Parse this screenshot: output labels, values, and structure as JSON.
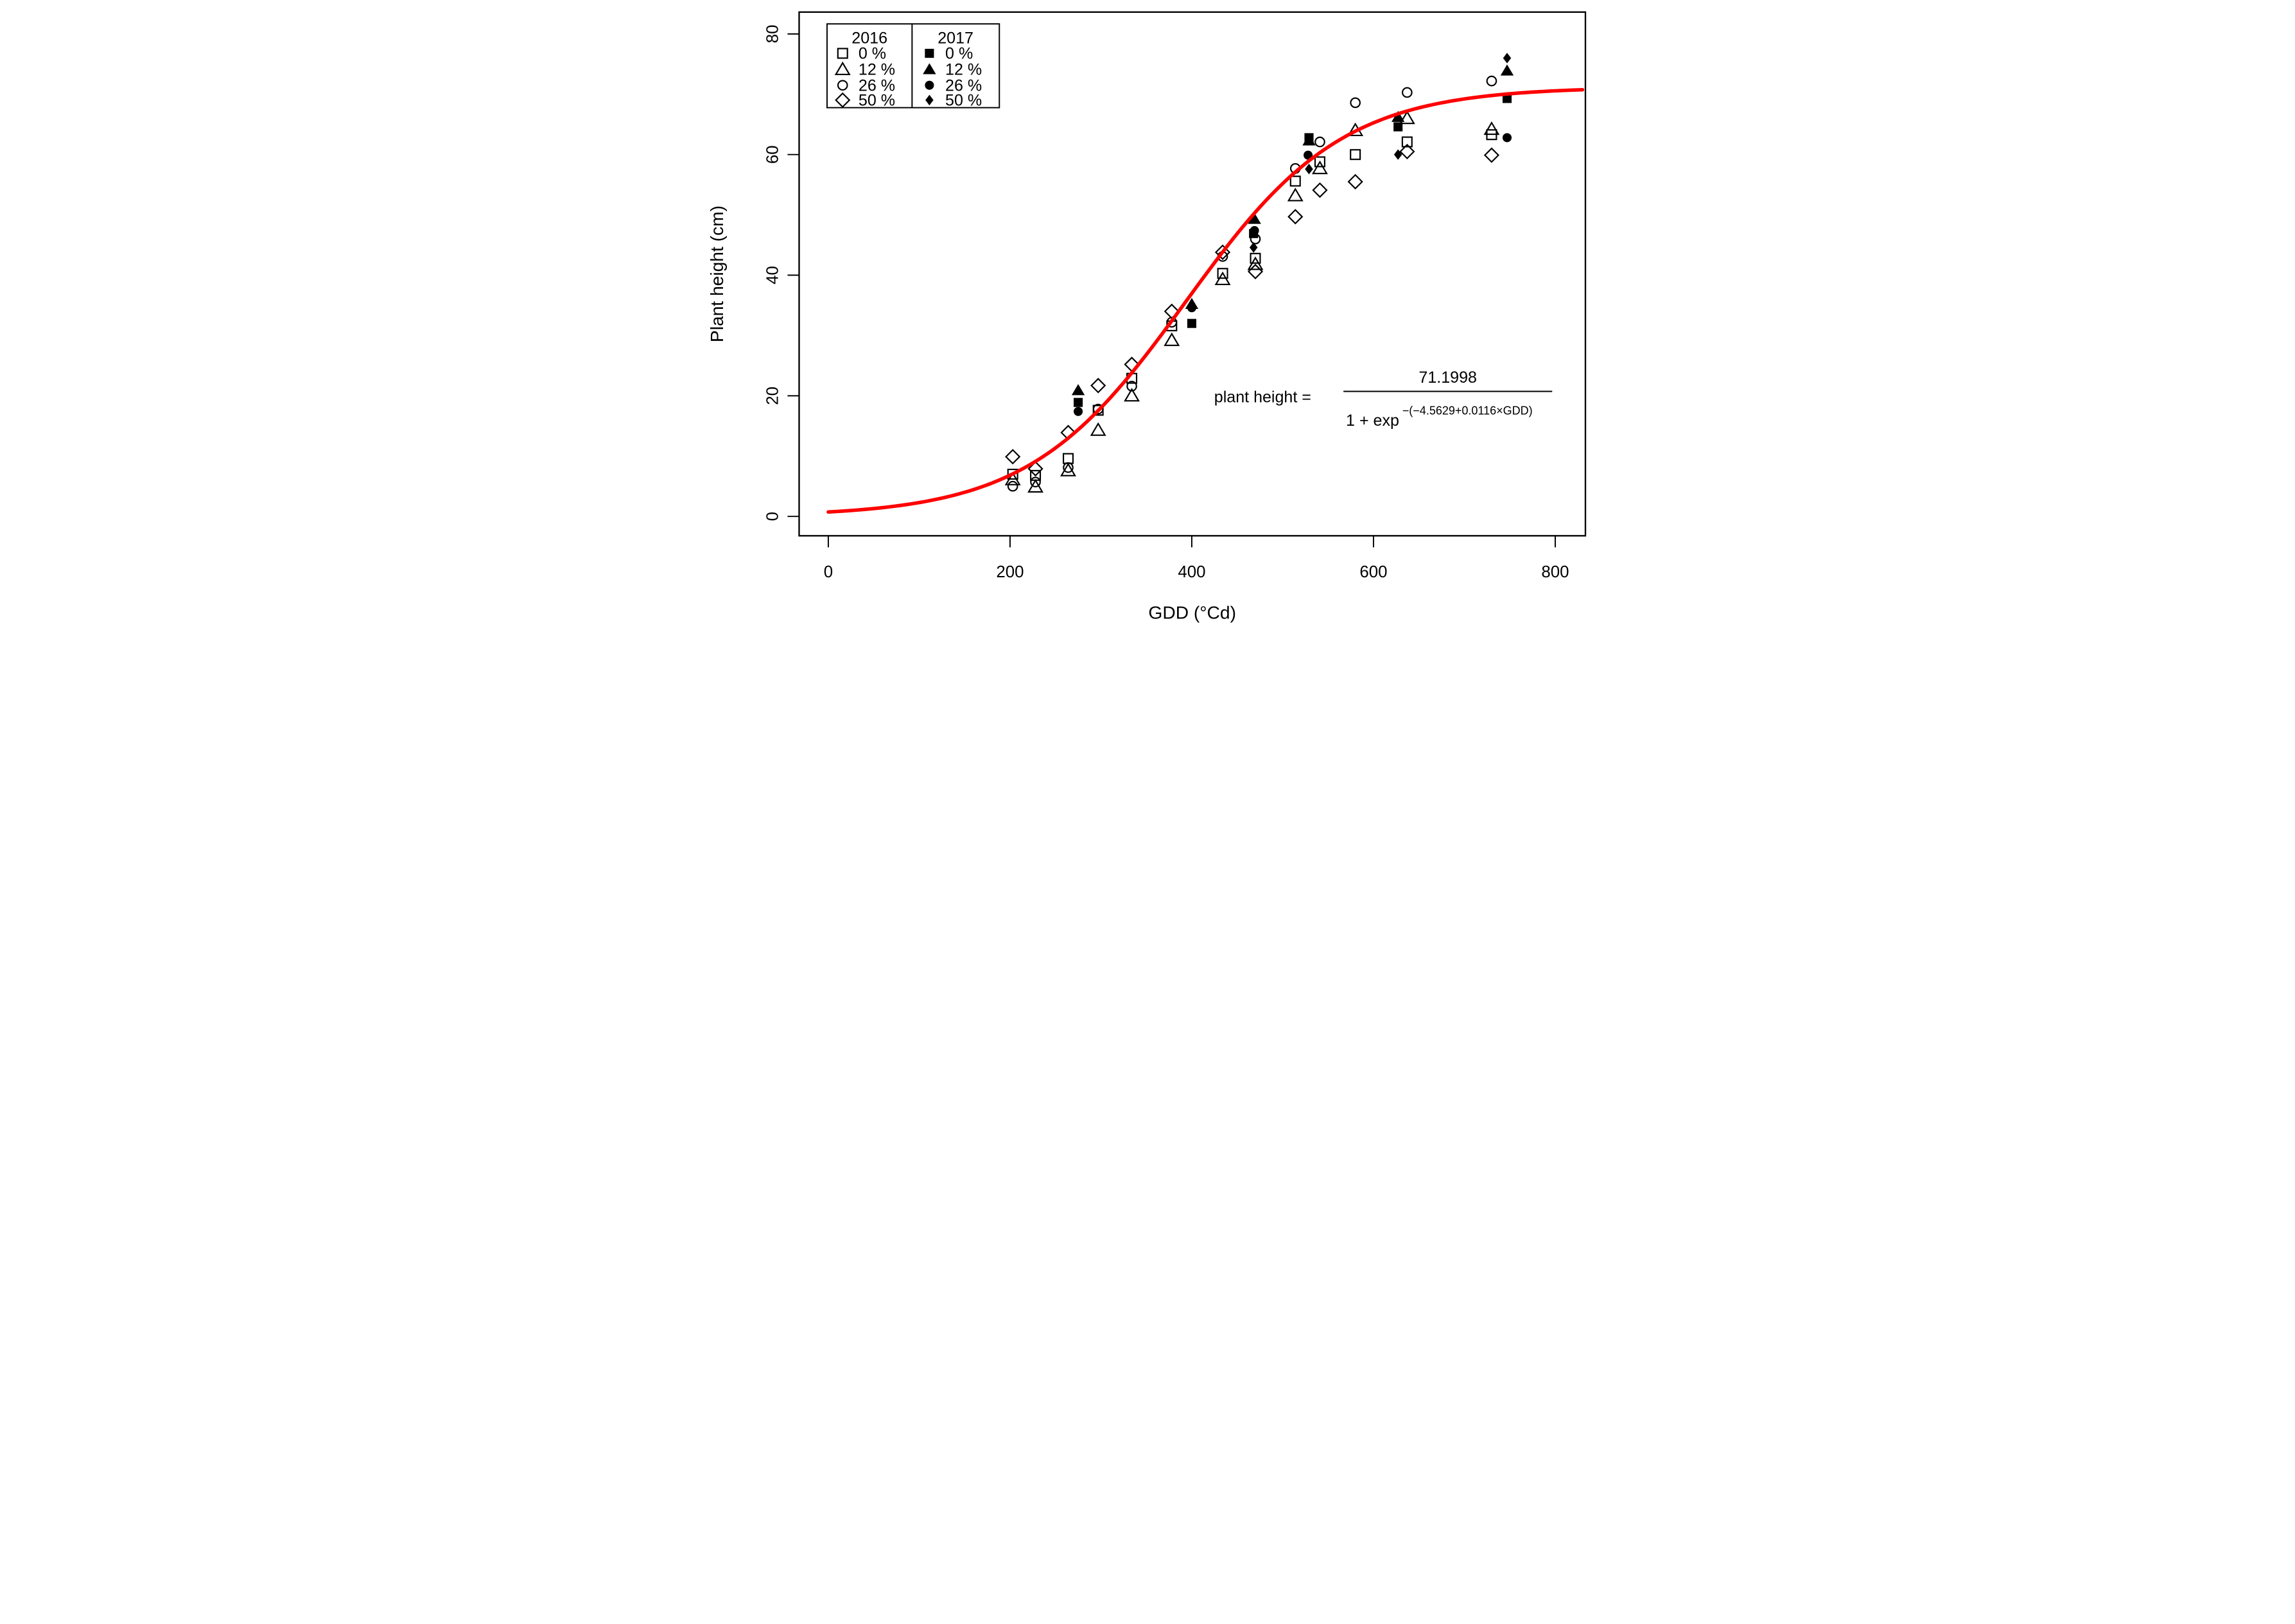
{
  "figure": {
    "background": "#FFFFFF",
    "frame_color": "#000000",
    "curve_color": "#FF0000"
  },
  "axes": {
    "x": {
      "label": "GDD (°Cd)"
    },
    "y": {
      "label": "Plant height (cm)"
    }
  },
  "legend": {
    "columns": [
      {
        "title": "2016",
        "items": [
          {
            "marker": "square-open",
            "label": "0 %"
          },
          {
            "marker": "triangle-open",
            "label": "12 %"
          },
          {
            "marker": "circle-open",
            "label": "26 %"
          },
          {
            "marker": "diamond-open",
            "label": "50 %"
          }
        ]
      },
      {
        "title": "2017",
        "items": [
          {
            "marker": "square-filled",
            "label": "0 %"
          },
          {
            "marker": "triangle-filled",
            "label": "12 %"
          },
          {
            "marker": "circle-filled",
            "label": "26 %"
          },
          {
            "marker": "diamond-filled",
            "label": "50 %"
          }
        ]
      }
    ]
  },
  "equation": {
    "lhs": "plant height =",
    "numerator": "71.1998",
    "denominator_base": "1 + exp",
    "denominator_exponent": "−(−4.5629+0.0116×GDD)"
  },
  "chart_data": {
    "type": "scatter",
    "title": "",
    "xlabel": "GDD (°Cd)",
    "ylabel": "Plant height (cm)",
    "xlim": [
      -32,
      833
    ],
    "ylim": [
      -3.2,
      83.6
    ],
    "x_ticks": [
      0,
      200,
      400,
      600,
      800
    ],
    "y_ticks": [
      0,
      20,
      40,
      60,
      80
    ],
    "grid": false,
    "legend_position": "top-left",
    "curve": {
      "type": "logistic",
      "formula": "plant height = 71.1998 / (1 + exp(-(-4.5629 + 0.0116*GDD)))",
      "asymptote": 71.1998,
      "intercept": -4.5629,
      "slope": 0.0116,
      "x_range": [
        0,
        830
      ],
      "color": "#FF0000"
    },
    "series": [
      {
        "name": "2016 0 %",
        "year": "2016",
        "treatment": "0 %",
        "marker": "square-open",
        "points": [
          [
            203,
            7.0
          ],
          [
            228,
            6.8
          ],
          [
            264,
            9.6
          ],
          [
            297,
            17.6
          ],
          [
            334,
            22.9
          ],
          [
            378,
            31.6
          ],
          [
            434,
            40.3
          ],
          [
            470,
            42.8
          ],
          [
            514,
            55.6
          ],
          [
            541,
            58.8
          ],
          [
            580,
            60.0
          ],
          [
            637,
            62.1
          ],
          [
            730,
            63.3
          ]
        ]
      },
      {
        "name": "2016 12 %",
        "year": "2016",
        "treatment": "12 %",
        "marker": "triangle-open",
        "points": [
          [
            203,
            6.1
          ],
          [
            228,
            4.9
          ],
          [
            264,
            7.6
          ],
          [
            297,
            14.3
          ],
          [
            334,
            20.0
          ],
          [
            378,
            29.2
          ],
          [
            434,
            39.3
          ],
          [
            470,
            41.8
          ],
          [
            514,
            53.2
          ],
          [
            541,
            57.7
          ],
          [
            580,
            64.0
          ],
          [
            637,
            66.0
          ],
          [
            730,
            64.2
          ]
        ]
      },
      {
        "name": "2016 26 %",
        "year": "2016",
        "treatment": "26 %",
        "marker": "circle-open",
        "points": [
          [
            203,
            5.0
          ],
          [
            228,
            5.7
          ],
          [
            264,
            8.1
          ],
          [
            297,
            17.8
          ],
          [
            334,
            21.6
          ],
          [
            378,
            32.2
          ],
          [
            434,
            43.1
          ],
          [
            470,
            46.0
          ],
          [
            514,
            57.7
          ],
          [
            541,
            62.1
          ],
          [
            580,
            68.6
          ],
          [
            637,
            70.3
          ],
          [
            730,
            72.2
          ]
        ]
      },
      {
        "name": "2016 50 %",
        "year": "2016",
        "treatment": "50 %",
        "marker": "diamond-open",
        "points": [
          [
            203,
            9.9
          ],
          [
            228,
            7.9
          ],
          [
            264,
            13.9
          ],
          [
            297,
            21.7
          ],
          [
            334,
            25.2
          ],
          [
            378,
            34.0
          ],
          [
            434,
            43.8
          ],
          [
            470,
            40.6
          ],
          [
            514,
            49.7
          ],
          [
            541,
            54.1
          ],
          [
            580,
            55.5
          ],
          [
            637,
            60.5
          ],
          [
            730,
            59.9
          ]
        ]
      },
      {
        "name": "2017 0 %",
        "year": "2017",
        "treatment": "0 %",
        "marker": "square-filled",
        "points": [
          [
            275,
            18.9
          ],
          [
            400,
            32.0
          ],
          [
            468,
            46.9
          ],
          [
            529,
            62.8
          ],
          [
            627,
            64.6
          ],
          [
            747,
            69.3
          ]
        ]
      },
      {
        "name": "2017 12 %",
        "year": "2017",
        "treatment": "12 %",
        "marker": "triangle-filled",
        "points": [
          [
            275,
            20.9
          ],
          [
            400,
            35.2
          ],
          [
            469,
            49.3
          ],
          [
            529,
            62.3
          ],
          [
            627,
            66.2
          ],
          [
            747,
            73.9
          ]
        ]
      },
      {
        "name": "2017 26 %",
        "year": "2017",
        "treatment": "26 %",
        "marker": "circle-filled",
        "points": [
          [
            275,
            17.4
          ],
          [
            400,
            34.6
          ],
          [
            469,
            47.4
          ],
          [
            528,
            59.9
          ],
          [
            747,
            62.8
          ]
        ]
      },
      {
        "name": "2017 50 %",
        "year": "2017",
        "treatment": "50 %",
        "marker": "diamond-filled",
        "points": [
          [
            468,
            44.6
          ],
          [
            529,
            57.6
          ],
          [
            627,
            60.0
          ],
          [
            747,
            76.0
          ]
        ]
      }
    ]
  }
}
